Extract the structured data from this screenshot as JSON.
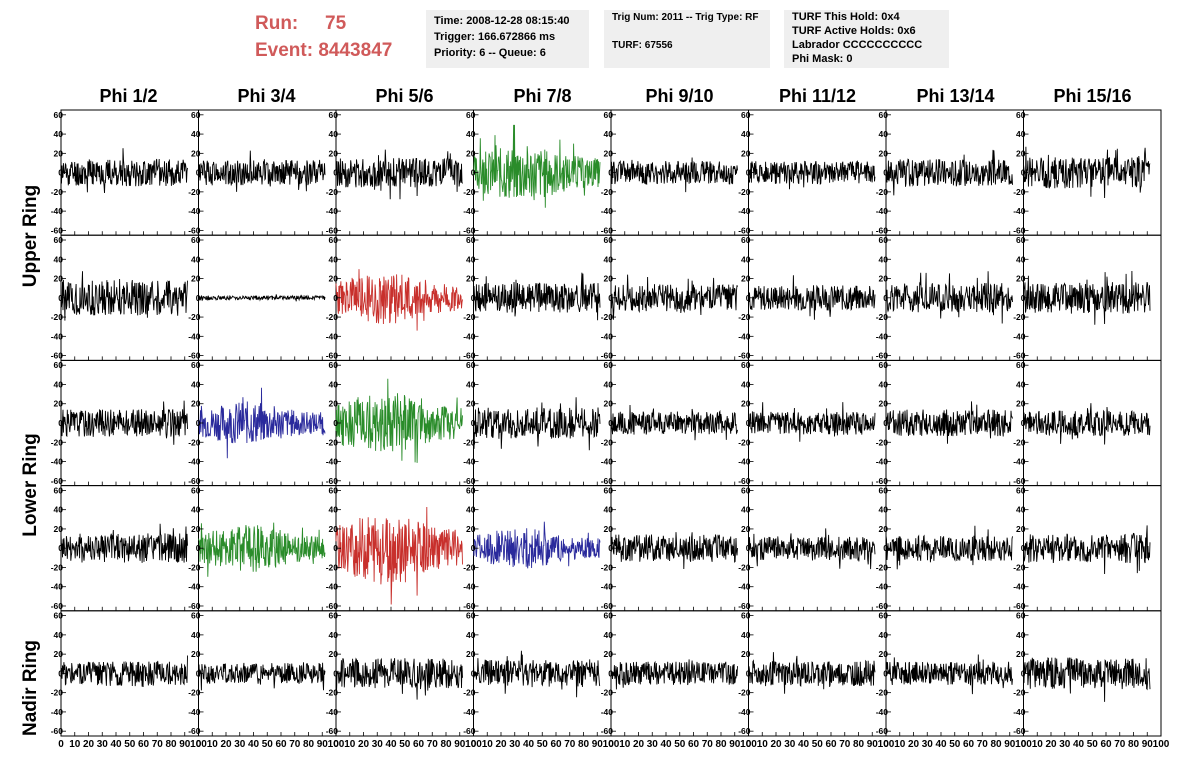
{
  "header": {
    "run_label": "Run:",
    "run_value": "75",
    "event_label": "Event:",
    "event_value": "8443847",
    "time": "Time: 2008-12-28 08:15:40",
    "trigger": "Trigger: 166.672866 ms",
    "priority": "Priority: 6 -- Queue: 6",
    "trig_num": "Trig Num: 2011 -- Trig Type: RF",
    "turf": "TURF: 67556",
    "turf_this_hold": "TURF This Hold: 0x4",
    "turf_active_holds": "TURF Active Holds: 0x6",
    "labrador": "Labrador CCCCCCCCCC",
    "phi_mask": "Phi Mask: 0"
  },
  "columns": [
    "Phi 1/2",
    "Phi 3/4",
    "Phi 5/6",
    "Phi 7/8",
    "Phi 9/10",
    "Phi 11/12",
    "Phi 13/14",
    "Phi 15/16"
  ],
  "row_groups": [
    {
      "label": "Upper Ring"
    },
    {
      "label": "Lower Ring"
    },
    {
      "label": "Nadir Ring"
    }
  ],
  "colors": {
    "default": "#000000",
    "green": "#2a8c2a",
    "red": "#c8302c",
    "blue": "#2a2a9c",
    "header_red": "#d05a5a",
    "infobox_bg": "#efefef"
  },
  "chart_data": {
    "type": "line",
    "xlim": [
      0,
      100
    ],
    "ylim": [
      -65,
      65
    ],
    "xticks": [
      0,
      10,
      20,
      30,
      40,
      50,
      60,
      70,
      80,
      90,
      100
    ],
    "yticks": [
      -60,
      -40,
      -20,
      0,
      20,
      40,
      60
    ],
    "xtick_labels": [
      "0",
      "10",
      "20",
      "30",
      "40",
      "50",
      "60",
      "70",
      "80",
      "90",
      "100"
    ],
    "ytick_labels": [
      "-60",
      "-40",
      "-20",
      "0",
      "20",
      "40",
      "60"
    ],
    "waveform_x_range": [
      0,
      92
    ],
    "panel_rows": 5,
    "panel_cols": 8,
    "panels": [
      [
        {
          "color": "default",
          "amp": 13,
          "seed": 11
        },
        {
          "color": "default",
          "amp": 12,
          "seed": 12
        },
        {
          "color": "default",
          "amp": 14,
          "seed": 13
        },
        {
          "color": "green",
          "amp": 24,
          "seed": 14
        },
        {
          "color": "default",
          "amp": 11,
          "seed": 15
        },
        {
          "color": "default",
          "amp": 11,
          "seed": 16
        },
        {
          "color": "default",
          "amp": 13,
          "seed": 17
        },
        {
          "color": "default",
          "amp": 15,
          "seed": 18
        }
      ],
      [
        {
          "color": "default",
          "amp": 17,
          "seed": 21
        },
        {
          "color": "default",
          "amp": 2,
          "seed": 22
        },
        {
          "color": "red",
          "amp": 22,
          "seed": 23
        },
        {
          "color": "default",
          "amp": 14,
          "seed": 24
        },
        {
          "color": "default",
          "amp": 13,
          "seed": 25
        },
        {
          "color": "default",
          "amp": 12,
          "seed": 26
        },
        {
          "color": "default",
          "amp": 14,
          "seed": 27
        },
        {
          "color": "default",
          "amp": 15,
          "seed": 28
        }
      ],
      [
        {
          "color": "default",
          "amp": 13,
          "seed": 31
        },
        {
          "color": "blue",
          "amp": 18,
          "seed": 32
        },
        {
          "color": "green",
          "amp": 26,
          "seed": 33
        },
        {
          "color": "default",
          "amp": 15,
          "seed": 34
        },
        {
          "color": "default",
          "amp": 11,
          "seed": 35
        },
        {
          "color": "default",
          "amp": 11,
          "seed": 36
        },
        {
          "color": "default",
          "amp": 13,
          "seed": 37
        },
        {
          "color": "default",
          "amp": 12,
          "seed": 38
        }
      ],
      [
        {
          "color": "default",
          "amp": 14,
          "seed": 41
        },
        {
          "color": "green",
          "amp": 20,
          "seed": 42
        },
        {
          "color": "red",
          "amp": 30,
          "seed": 43
        },
        {
          "color": "blue",
          "amp": 17,
          "seed": 44
        },
        {
          "color": "default",
          "amp": 13,
          "seed": 45
        },
        {
          "color": "default",
          "amp": 11,
          "seed": 46
        },
        {
          "color": "default",
          "amp": 12,
          "seed": 47
        },
        {
          "color": "default",
          "amp": 14,
          "seed": 48
        }
      ],
      [
        {
          "color": "default",
          "amp": 12,
          "seed": 51
        },
        {
          "color": "default",
          "amp": 10,
          "seed": 52
        },
        {
          "color": "default",
          "amp": 14,
          "seed": 53
        },
        {
          "color": "default",
          "amp": 13,
          "seed": 54
        },
        {
          "color": "default",
          "amp": 11,
          "seed": 55
        },
        {
          "color": "default",
          "amp": 12,
          "seed": 56
        },
        {
          "color": "default",
          "amp": 11,
          "seed": 57
        },
        {
          "color": "default",
          "amp": 15,
          "seed": 58
        }
      ]
    ]
  }
}
